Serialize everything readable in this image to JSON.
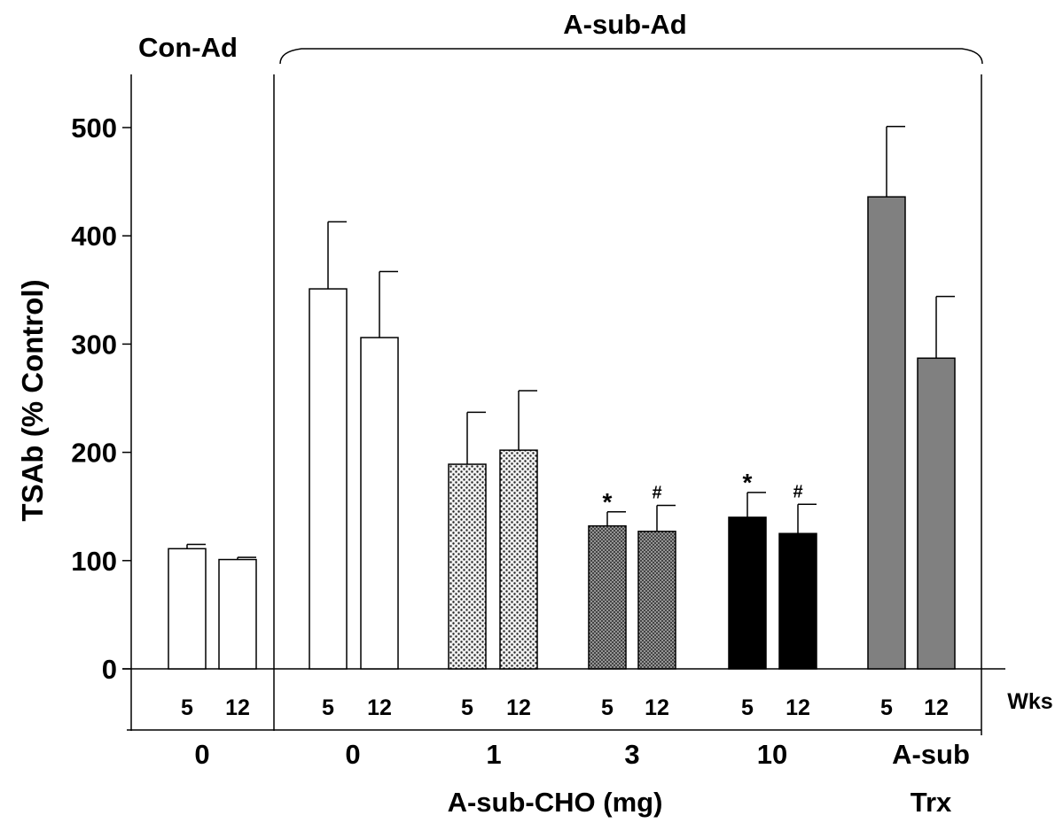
{
  "chart_data": {
    "type": "bar",
    "ylabel": "TSAb (% Control)",
    "xlabel": "A-sub-CHO (mg)",
    "ylim": [
      0,
      550
    ],
    "yticks": [
      0,
      100,
      200,
      300,
      400,
      500
    ],
    "weeks_label": "Wks",
    "header_left": "Con-Ad",
    "header_right": "A-sub-Ad",
    "groups": [
      {
        "label": "0",
        "fill": "white"
      },
      {
        "label": "0",
        "fill": "white"
      },
      {
        "label": "1",
        "fill": "dots-light"
      },
      {
        "label": "3",
        "fill": "dots-dense"
      },
      {
        "label": "10",
        "fill": "black"
      },
      {
        "label": "A-sub",
        "label2": "Trx",
        "fill": "gray"
      }
    ],
    "bars": [
      {
        "group": 0,
        "week": "5",
        "value": 111,
        "error": 4,
        "mark": ""
      },
      {
        "group": 0,
        "week": "12",
        "value": 101,
        "error": 2,
        "mark": ""
      },
      {
        "group": 1,
        "week": "5",
        "value": 351,
        "error": 62,
        "mark": ""
      },
      {
        "group": 1,
        "week": "12",
        "value": 306,
        "error": 61,
        "mark": ""
      },
      {
        "group": 2,
        "week": "5",
        "value": 189,
        "error": 48,
        "mark": ""
      },
      {
        "group": 2,
        "week": "12",
        "value": 202,
        "error": 55,
        "mark": ""
      },
      {
        "group": 3,
        "week": "5",
        "value": 132,
        "error": 13,
        "mark": "*"
      },
      {
        "group": 3,
        "week": "12",
        "value": 127,
        "error": 24,
        "mark": "#"
      },
      {
        "group": 4,
        "week": "5",
        "value": 140,
        "error": 23,
        "mark": "*"
      },
      {
        "group": 4,
        "week": "12",
        "value": 125,
        "error": 27,
        "mark": "#"
      },
      {
        "group": 5,
        "week": "5",
        "value": 436,
        "error": 65,
        "mark": ""
      },
      {
        "group": 5,
        "week": "12",
        "value": 287,
        "error": 57,
        "mark": ""
      }
    ]
  }
}
